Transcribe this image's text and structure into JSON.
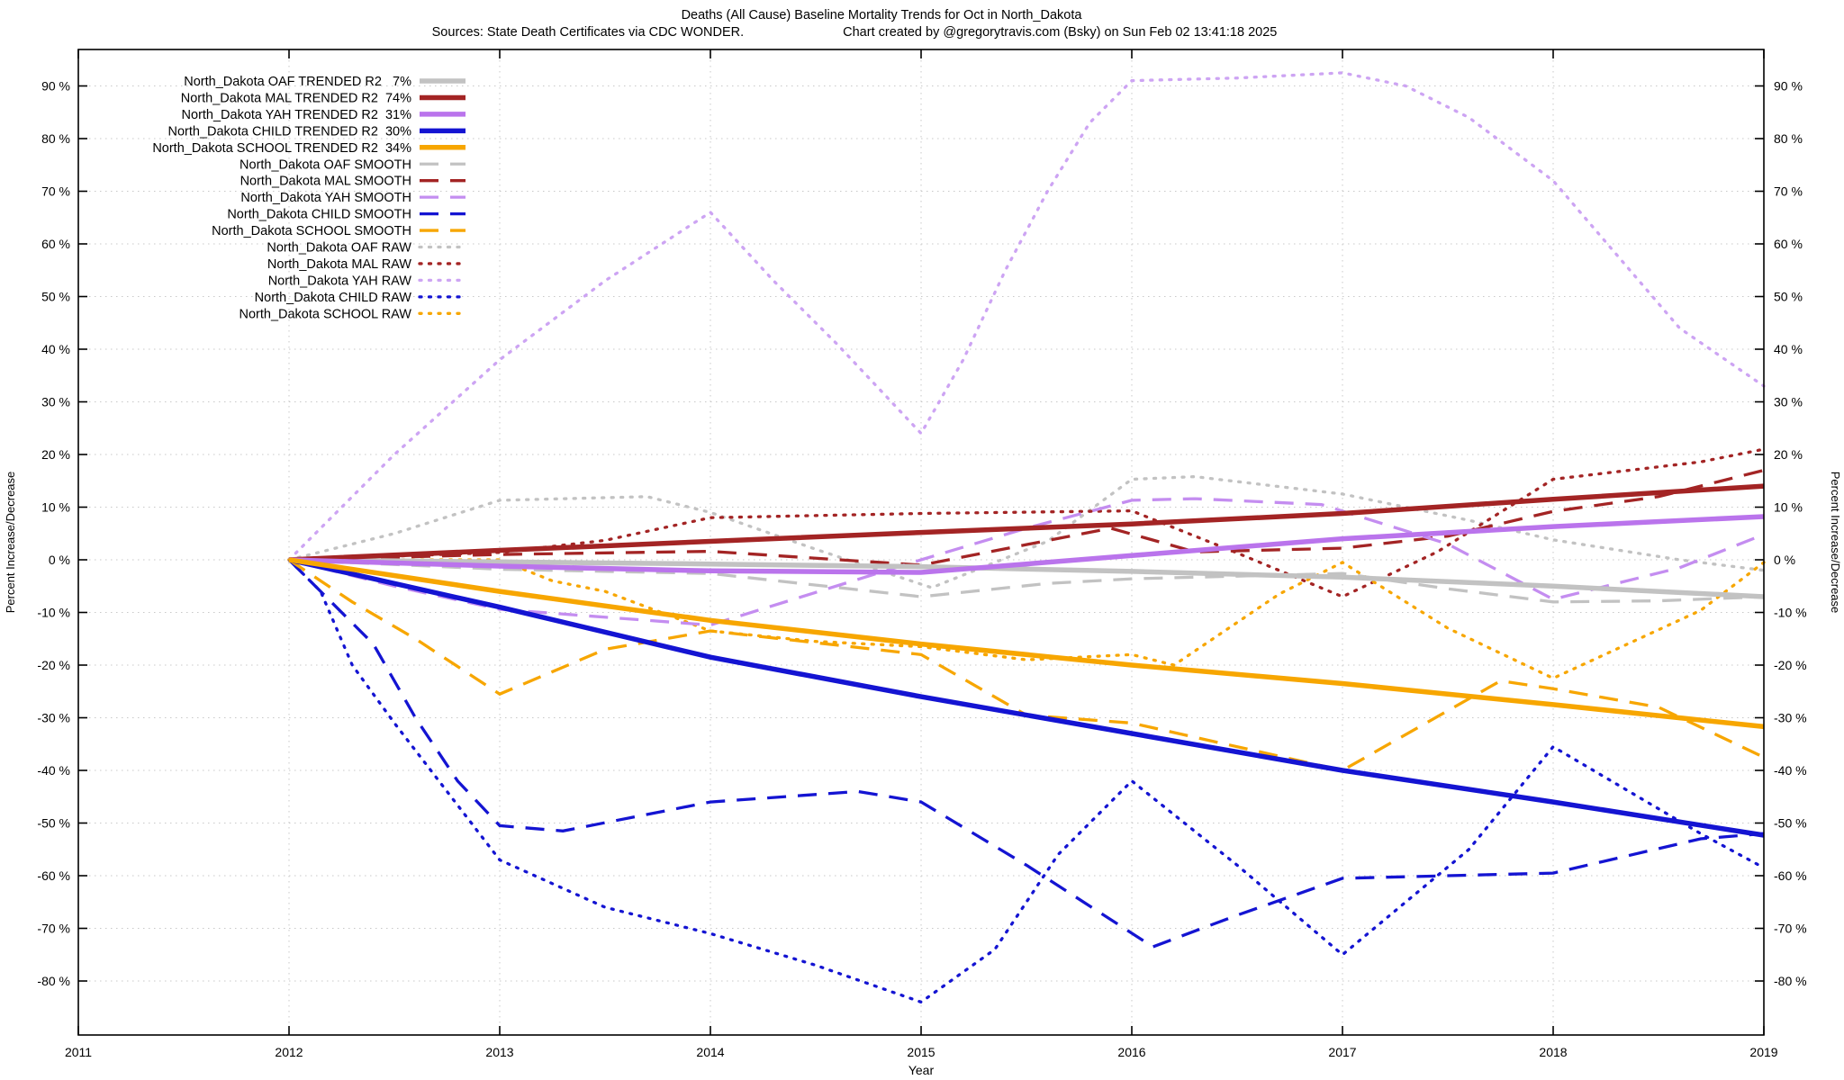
{
  "header": {
    "title": "Deaths (All Cause)  Baseline Mortality Trends for Oct in North_Dakota",
    "sources": "Sources: State Death Certificates via CDC WONDER.",
    "credit": "Chart created by @gregorytravis.com (Bsky) on Sun Feb 02 13:41:18 2025"
  },
  "axes": {
    "x_label": "Year",
    "y_label_left": "Percent Increase/Decrease",
    "y_label_right": "Percent Increase/Decrease",
    "x_ticks": [
      "2011",
      "2012",
      "2013",
      "2014",
      "2015",
      "2016",
      "2017",
      "2018",
      "2019"
    ],
    "y_ticks": [
      "90 %",
      "80 %",
      "70 %",
      "60 %",
      "50 %",
      "40 %",
      "30 %",
      "20 %",
      "10 %",
      "0 %",
      "-10 %",
      "-20 %",
      "-30 %",
      "-40 %",
      "-50 %",
      "-60 %",
      "-70 %",
      "-80 %"
    ]
  },
  "colors": {
    "oaf": "#c2c2c2",
    "mal": "#a32424",
    "yah_trended": "#ba74ec",
    "yah_smooth": "#c48df0",
    "yah_raw": "#cda4f3",
    "child": "#1414d2",
    "school": "#f7a600",
    "grid": "#c8c8c8",
    "border": "#000000"
  },
  "legend": [
    {
      "label": "North_Dakota OAF TRENDED R2   7%",
      "series": "oaf_trended"
    },
    {
      "label": "North_Dakota MAL TRENDED R2  74%",
      "series": "mal_trended"
    },
    {
      "label": "North_Dakota YAH TRENDED R2  31%",
      "series": "yah_trended"
    },
    {
      "label": "North_Dakota CHILD TRENDED R2  30%",
      "series": "child_trended"
    },
    {
      "label": "North_Dakota SCHOOL TRENDED R2  34%",
      "series": "school_trended"
    },
    {
      "label": "North_Dakota OAF SMOOTH",
      "series": "oaf_smooth"
    },
    {
      "label": "North_Dakota MAL SMOOTH",
      "series": "mal_smooth"
    },
    {
      "label": "North_Dakota YAH SMOOTH",
      "series": "yah_smooth"
    },
    {
      "label": "North_Dakota CHILD SMOOTH",
      "series": "child_smooth"
    },
    {
      "label": "North_Dakota SCHOOL SMOOTH",
      "series": "school_smooth"
    },
    {
      "label": "North_Dakota OAF RAW",
      "series": "oaf_raw"
    },
    {
      "label": "North_Dakota MAL RAW",
      "series": "mal_raw"
    },
    {
      "label": "North_Dakota YAH RAW",
      "series": "yah_raw"
    },
    {
      "label": "North_Dakota CHILD RAW",
      "series": "child_raw"
    },
    {
      "label": "North_Dakota SCHOOL RAW",
      "series": "school_raw"
    }
  ],
  "chart_data": {
    "type": "line",
    "title": "Deaths (All Cause)  Baseline Mortality Trends for Oct in North_Dakota",
    "xlabel": "Year",
    "ylabel": "Percent Increase/Decrease",
    "x_range": [
      2011,
      2019
    ],
    "y_tick_range": [
      90,
      -80
    ],
    "y_axis_top_pct": 97,
    "y_axis_bottom_pct": -90,
    "grid": true,
    "legend_position": "top-left",
    "series": [
      {
        "key": "oaf_raw",
        "name": "North_Dakota OAF RAW",
        "style": "raw",
        "color": "#c2c2c2",
        "points": [
          [
            2012,
            0
          ],
          [
            2012.5,
            5
          ],
          [
            2013,
            11.3
          ],
          [
            2013.7,
            12
          ],
          [
            2014,
            9
          ],
          [
            2014.5,
            2
          ],
          [
            2015.05,
            -5.3
          ],
          [
            2015.6,
            3.5
          ],
          [
            2016,
            15.3
          ],
          [
            2016.3,
            15.8
          ],
          [
            2017,
            12.5
          ],
          [
            2017.6,
            7.5
          ],
          [
            2018,
            3.8
          ],
          [
            2018.6,
            0
          ],
          [
            2019,
            -2
          ]
        ]
      },
      {
        "key": "mal_raw",
        "name": "North_Dakota MAL RAW",
        "style": "raw",
        "color": "#a32424",
        "points": [
          [
            2012,
            0
          ],
          [
            2013,
            1.4
          ],
          [
            2013.5,
            3.7
          ],
          [
            2014,
            8
          ],
          [
            2015,
            8.8
          ],
          [
            2016,
            9.3
          ],
          [
            2016.5,
            1.3
          ],
          [
            2017,
            -7
          ],
          [
            2017.45,
            1.5
          ],
          [
            2018,
            15.3
          ],
          [
            2018.7,
            18.6
          ],
          [
            2019,
            21
          ]
        ]
      },
      {
        "key": "yah_raw",
        "name": "North_Dakota YAH RAW",
        "style": "raw",
        "color": "#cda4f3",
        "points": [
          [
            2012,
            0
          ],
          [
            2012.5,
            20
          ],
          [
            2013,
            38
          ],
          [
            2013.5,
            53
          ],
          [
            2014,
            66
          ],
          [
            2014.3,
            53
          ],
          [
            2014.6,
            41
          ],
          [
            2015,
            24
          ],
          [
            2015.2,
            38
          ],
          [
            2015.4,
            55
          ],
          [
            2015.6,
            70
          ],
          [
            2015.8,
            83
          ],
          [
            2016,
            91
          ],
          [
            2016.5,
            91.5
          ],
          [
            2017,
            92.5
          ],
          [
            2017.3,
            90
          ],
          [
            2017.6,
            84
          ],
          [
            2018,
            72
          ],
          [
            2018.3,
            58
          ],
          [
            2018.6,
            44
          ],
          [
            2019,
            33
          ]
        ]
      },
      {
        "key": "child_raw",
        "name": "North_Dakota CHILD RAW",
        "style": "raw",
        "color": "#1414d2",
        "points": [
          [
            2012,
            0
          ],
          [
            2012.15,
            -6
          ],
          [
            2012.3,
            -20
          ],
          [
            2012.5,
            -31
          ],
          [
            2013,
            -57
          ],
          [
            2013.5,
            -66
          ],
          [
            2014,
            -71
          ],
          [
            2014.5,
            -77
          ],
          [
            2015,
            -84
          ],
          [
            2015.35,
            -74
          ],
          [
            2015.65,
            -56
          ],
          [
            2016,
            -42
          ],
          [
            2016.5,
            -58
          ],
          [
            2017,
            -75
          ],
          [
            2017.6,
            -55
          ],
          [
            2018,
            -35.5
          ],
          [
            2018.7,
            -52
          ],
          [
            2019,
            -58.5
          ]
        ]
      },
      {
        "key": "school_raw",
        "name": "North_Dakota SCHOOL RAW",
        "style": "raw",
        "color": "#f7a600",
        "points": [
          [
            2012,
            0
          ],
          [
            2013,
            0
          ],
          [
            2013.25,
            -4
          ],
          [
            2013.5,
            -6
          ],
          [
            2014,
            -13.5
          ],
          [
            2014.5,
            -15.5
          ],
          [
            2015,
            -16.5
          ],
          [
            2015.5,
            -19
          ],
          [
            2016,
            -18
          ],
          [
            2016.2,
            -20
          ],
          [
            2016.7,
            -6.5
          ],
          [
            2017,
            -0.5
          ],
          [
            2017.5,
            -13
          ],
          [
            2018,
            -22.5
          ],
          [
            2018.7,
            -9.6
          ],
          [
            2019,
            -0.5
          ]
        ]
      },
      {
        "key": "oaf_smooth",
        "name": "North_Dakota OAF SMOOTH",
        "style": "smooth",
        "color": "#c2c2c2",
        "points": [
          [
            2012,
            0
          ],
          [
            2013,
            -1.8
          ],
          [
            2014,
            -2.6
          ],
          [
            2015,
            -7
          ],
          [
            2015.6,
            -4.5
          ],
          [
            2016,
            -3.6
          ],
          [
            2017,
            -2.6
          ],
          [
            2017.5,
            -5.5
          ],
          [
            2018,
            -8
          ],
          [
            2018.5,
            -7.8
          ],
          [
            2019,
            -7
          ]
        ]
      },
      {
        "key": "mal_smooth",
        "name": "North_Dakota MAL SMOOTH",
        "style": "smooth",
        "color": "#a32424",
        "points": [
          [
            2012,
            0
          ],
          [
            2013,
            1
          ],
          [
            2014,
            1.6
          ],
          [
            2015,
            -1
          ],
          [
            2015.9,
            6
          ],
          [
            2016.3,
            1.5
          ],
          [
            2017,
            2.2
          ],
          [
            2017.5,
            4.5
          ],
          [
            2018,
            9.2
          ],
          [
            2018.5,
            12
          ],
          [
            2019,
            17
          ]
        ]
      },
      {
        "key": "yah_smooth",
        "name": "North_Dakota YAH SMOOTH",
        "style": "smooth",
        "color": "#c48df0",
        "points": [
          [
            2012,
            0
          ],
          [
            2012.5,
            -5
          ],
          [
            2013,
            -9.4
          ],
          [
            2014,
            -12.4
          ],
          [
            2015,
            0
          ],
          [
            2015.5,
            6
          ],
          [
            2016,
            11.3
          ],
          [
            2016.3,
            11.6
          ],
          [
            2016.9,
            10.5
          ],
          [
            2017.5,
            3
          ],
          [
            2018,
            -7.5
          ],
          [
            2018.6,
            -1.5
          ],
          [
            2019,
            4.8
          ]
        ]
      },
      {
        "key": "child_smooth",
        "name": "North_Dakota CHILD SMOOTH",
        "style": "smooth",
        "color": "#1414d2",
        "points": [
          [
            2012,
            0
          ],
          [
            2012.2,
            -8
          ],
          [
            2012.4,
            -16
          ],
          [
            2012.6,
            -30
          ],
          [
            2012.8,
            -42
          ],
          [
            2013,
            -50.5
          ],
          [
            2013.3,
            -51.5
          ],
          [
            2014,
            -46
          ],
          [
            2014.7,
            -44
          ],
          [
            2015,
            -46
          ],
          [
            2015.5,
            -58
          ],
          [
            2016.1,
            -73.5
          ],
          [
            2016.5,
            -67.5
          ],
          [
            2017,
            -60.5
          ],
          [
            2018,
            -59.5
          ],
          [
            2018.7,
            -53
          ],
          [
            2019,
            -52
          ]
        ]
      },
      {
        "key": "school_smooth",
        "name": "North_Dakota SCHOOL SMOOTH",
        "style": "smooth",
        "color": "#f7a600",
        "points": [
          [
            2012,
            0
          ],
          [
            2012.3,
            -8
          ],
          [
            2012.6,
            -15
          ],
          [
            2013,
            -25.5
          ],
          [
            2013.5,
            -17
          ],
          [
            2014,
            -13.5
          ],
          [
            2015,
            -18
          ],
          [
            2015.5,
            -29.5
          ],
          [
            2016,
            -31
          ],
          [
            2017,
            -40
          ],
          [
            2017.75,
            -23
          ],
          [
            2018,
            -24.5
          ],
          [
            2018.5,
            -28
          ],
          [
            2019,
            -37.5
          ]
        ]
      },
      {
        "key": "oaf_trended",
        "name": "North_Dakota OAF TRENDED",
        "r2": "7%",
        "style": "trended",
        "color": "#c2c2c2",
        "points": [
          [
            2012,
            0
          ],
          [
            2013,
            -0.4
          ],
          [
            2014,
            -0.8
          ],
          [
            2015,
            -1.3
          ],
          [
            2016,
            -2.2
          ],
          [
            2017,
            -3.3
          ],
          [
            2018,
            -5
          ],
          [
            2019,
            -7
          ]
        ]
      },
      {
        "key": "mal_trended",
        "name": "North_Dakota MAL TRENDED",
        "r2": "74%",
        "style": "trended",
        "color": "#a32424",
        "points": [
          [
            2012,
            0
          ],
          [
            2013,
            1.8
          ],
          [
            2014,
            3.5
          ],
          [
            2015,
            5.2
          ],
          [
            2016,
            6.8
          ],
          [
            2017,
            8.8
          ],
          [
            2018,
            11.5
          ],
          [
            2019,
            14
          ]
        ]
      },
      {
        "key": "yah_trended",
        "name": "North_Dakota YAH TRENDED",
        "r2": "31%",
        "style": "trended",
        "color": "#ba74ec",
        "points": [
          [
            2012,
            0
          ],
          [
            2013,
            -1.2
          ],
          [
            2014,
            -2.1
          ],
          [
            2015,
            -2.4
          ],
          [
            2016,
            0.8
          ],
          [
            2017,
            4
          ],
          [
            2018,
            6.3
          ],
          [
            2019,
            8.2
          ]
        ]
      },
      {
        "key": "child_trended",
        "name": "North_Dakota CHILD TRENDED",
        "r2": "30%",
        "style": "trended",
        "color": "#1414d2",
        "points": [
          [
            2012,
            0
          ],
          [
            2013,
            -9
          ],
          [
            2014,
            -18.5
          ],
          [
            2015,
            -26
          ],
          [
            2016,
            -33
          ],
          [
            2017,
            -40
          ],
          [
            2018,
            -46
          ],
          [
            2019,
            -52.3
          ]
        ]
      },
      {
        "key": "school_trended",
        "name": "North_Dakota SCHOOL TRENDED",
        "r2": "34%",
        "style": "trended",
        "color": "#f7a600",
        "points": [
          [
            2012,
            0
          ],
          [
            2013,
            -6
          ],
          [
            2014,
            -11.5
          ],
          [
            2015,
            -16
          ],
          [
            2016,
            -20
          ],
          [
            2017,
            -23.5
          ],
          [
            2018,
            -27.5
          ],
          [
            2019,
            -31.7
          ]
        ]
      }
    ]
  }
}
